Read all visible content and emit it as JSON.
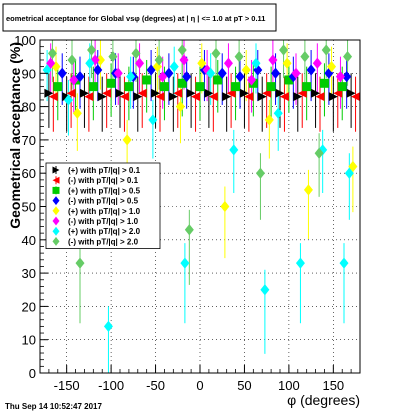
{
  "chart_data": {
    "type": "scatter",
    "title": "eometrical acceptance for Global vsφ (degrees) at | η | <= 1.0 at pT > 0.11",
    "xlabel": "φ (degrees)",
    "ylabel": "Geometrical acceptance (%)",
    "xlim": [
      -180,
      180
    ],
    "ylim": [
      0,
      100
    ],
    "xticks": [
      -150,
      -100,
      -50,
      0,
      50,
      100,
      150
    ],
    "yticks": [
      0,
      10,
      20,
      30,
      40,
      50,
      60,
      70,
      80,
      90,
      100
    ],
    "grid": true,
    "legend_position": "left",
    "series": [
      {
        "name": "(+) with pT/|q| > 0.1",
        "color": "#000000",
        "marker": "triangle-right",
        "x": [
          -170,
          -150,
          -130,
          -110,
          -90,
          -70,
          -50,
          -30,
          -10,
          10,
          30,
          50,
          70,
          90,
          110,
          130,
          150,
          170
        ],
        "y": [
          84,
          83,
          84,
          83,
          84,
          83,
          84,
          83,
          84,
          84,
          83,
          84,
          83,
          84,
          83,
          84,
          83,
          84
        ]
      },
      {
        "name": "(-) with pT/|q| > 0.1",
        "color": "#ff0000",
        "marker": "triangle-left",
        "x": [
          -165,
          -145,
          -125,
          -105,
          -85,
          -65,
          -45,
          -25,
          -5,
          15,
          35,
          55,
          75,
          95,
          115,
          135,
          155,
          175
        ],
        "y": [
          83,
          84,
          83,
          84,
          83,
          84,
          83,
          84,
          83,
          83,
          84,
          83,
          84,
          83,
          84,
          83,
          84,
          83
        ]
      },
      {
        "name": "(+) with pT/|q| > 0.5",
        "color": "#00cc00",
        "marker": "square",
        "x": [
          -160,
          -140,
          -120,
          -100,
          -80,
          -60,
          -40,
          -20,
          0,
          20,
          40,
          60,
          80,
          100,
          120,
          140,
          160
        ],
        "y": [
          86,
          88,
          86,
          87,
          86,
          88,
          86,
          87,
          86,
          88,
          86,
          87,
          86,
          88,
          86,
          87,
          86
        ]
      },
      {
        "name": "(-) with pT/|q| > 0.5",
        "color": "#0000ff",
        "marker": "diamond",
        "x": [
          -155,
          -135,
          -115,
          -95,
          -75,
          -55,
          -35,
          -15,
          5,
          25,
          45,
          65,
          85,
          105,
          125,
          145,
          165
        ],
        "y": [
          90,
          89,
          91,
          90,
          89,
          91,
          90,
          89,
          91,
          90,
          89,
          91,
          90,
          89,
          91,
          90,
          89
        ]
      },
      {
        "name": "(+) with pT/|q| > 1.0",
        "color": "#ffff00",
        "marker": "diamond",
        "x": [
          -162,
          -138,
          -112,
          -82,
          -48,
          -22,
          2,
          28,
          52,
          78,
          98,
          122,
          148,
          172
        ],
        "y": [
          92,
          78,
          94,
          70,
          92,
          80,
          93,
          50,
          91,
          76,
          93,
          55,
          92,
          62
        ]
      },
      {
        "name": "(-) with pT/|q| > 1.0",
        "color": "#ff00ff",
        "marker": "diamond",
        "x": [
          -168,
          -142,
          -118,
          -92,
          -68,
          -42,
          -18,
          8,
          32,
          58,
          82,
          108,
          132,
          158
        ],
        "y": [
          93,
          88,
          94,
          90,
          93,
          89,
          94,
          91,
          93,
          88,
          94,
          90,
          93,
          89
        ]
      },
      {
        "name": "(+) with pT/|q| > 2.0",
        "color": "#00ffff",
        "marker": "diamond",
        "x": [
          -172,
          -148,
          -124,
          -103,
          -78,
          -53,
          -29,
          -17,
          12,
          38,
          63,
          73,
          88,
          113,
          138,
          162,
          168
        ],
        "y": [
          91,
          82,
          93,
          14,
          89,
          76,
          92,
          33,
          90,
          67,
          93,
          25,
          78,
          33,
          67,
          33,
          60
        ]
      },
      {
        "name": "(-) with pT/|q| > 2.0",
        "color": "#66cc66",
        "marker": "diamond",
        "x": [
          -166,
          -144,
          -135,
          -122,
          -98,
          -72,
          -46,
          -20,
          -12,
          18,
          44,
          68,
          94,
          118,
          134,
          142,
          166
        ],
        "y": [
          96,
          94,
          33,
          97,
          95,
          96,
          94,
          97,
          43,
          96,
          95,
          60,
          97,
          95,
          66,
          97,
          95
        ]
      }
    ]
  },
  "footer": {
    "timestamp": "Thu Sep 14 10:52:47 2017"
  }
}
